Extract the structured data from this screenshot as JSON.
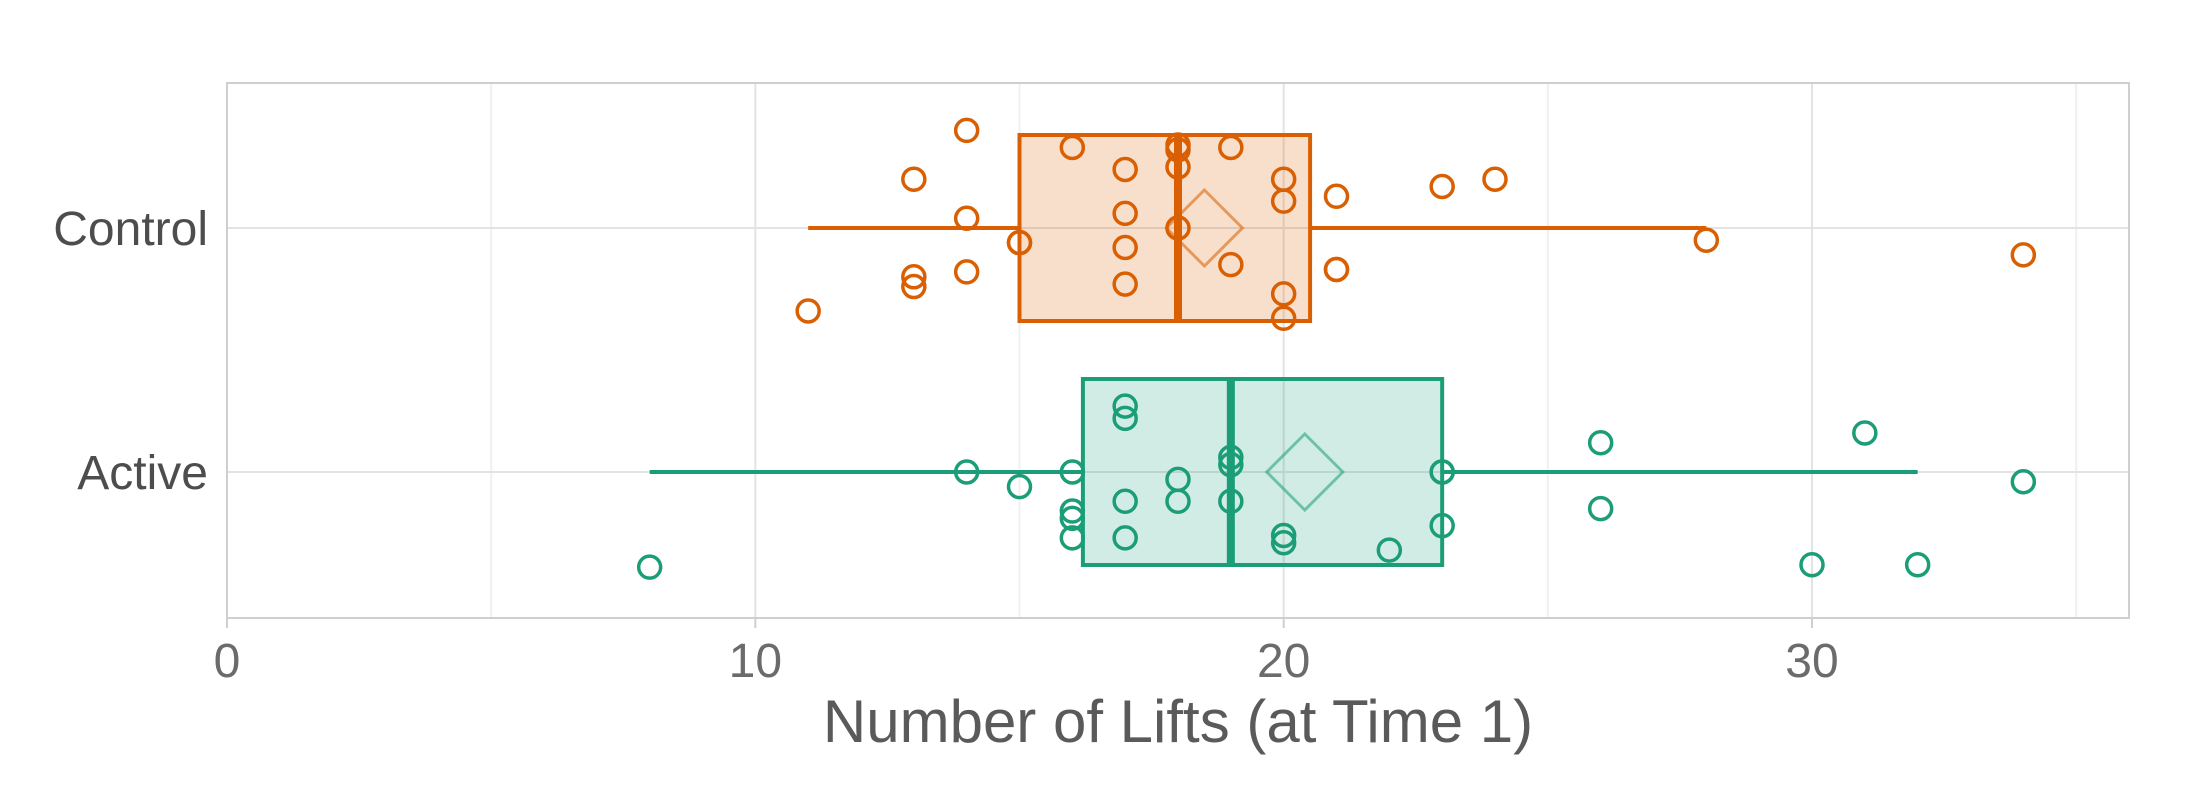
{
  "chart_data": {
    "type": "boxplot",
    "xlabel": "Number of Lifts (at Time 1)",
    "xlim": [
      0,
      36
    ],
    "x_ticks": [
      0,
      10,
      20,
      30
    ],
    "x_tick_labels": [
      "0",
      "10",
      "20",
      "30"
    ],
    "grid": true,
    "categories": [
      "Control",
      "Active"
    ],
    "groups": [
      {
        "name": "Control",
        "color": "#D95F02",
        "box": {
          "whisker_low": 11,
          "q1": 15,
          "median": 18,
          "q3": 20.5,
          "whisker_high": 28,
          "mean": 18.5
        },
        "points": [
          {
            "x": 14,
            "jitter": 0.4
          },
          {
            "x": 16,
            "jitter": 0.33
          },
          {
            "x": 18,
            "jitter": 0.34
          },
          {
            "x": 18,
            "jitter": 0.32
          },
          {
            "x": 19,
            "jitter": 0.33
          },
          {
            "x": 17,
            "jitter": 0.24
          },
          {
            "x": 13,
            "jitter": 0.2
          },
          {
            "x": 18,
            "jitter": 0.25
          },
          {
            "x": 20,
            "jitter": 0.2
          },
          {
            "x": 24,
            "jitter": 0.2
          },
          {
            "x": 23,
            "jitter": 0.17
          },
          {
            "x": 21,
            "jitter": 0.13
          },
          {
            "x": 20,
            "jitter": 0.11
          },
          {
            "x": 17,
            "jitter": 0.06
          },
          {
            "x": 14,
            "jitter": 0.04
          },
          {
            "x": 18,
            "jitter": 0.0
          },
          {
            "x": 15,
            "jitter": -0.06
          },
          {
            "x": 15,
            "jitter": -0.06
          },
          {
            "x": 17,
            "jitter": -0.08
          },
          {
            "x": 28,
            "jitter": -0.05
          },
          {
            "x": 34,
            "jitter": -0.11
          },
          {
            "x": 19,
            "jitter": -0.15
          },
          {
            "x": 14,
            "jitter": -0.18
          },
          {
            "x": 21,
            "jitter": -0.17
          },
          {
            "x": 21,
            "jitter": -0.17
          },
          {
            "x": 13,
            "jitter": -0.2
          },
          {
            "x": 13,
            "jitter": -0.24
          },
          {
            "x": 17,
            "jitter": -0.23
          },
          {
            "x": 20,
            "jitter": -0.27
          },
          {
            "x": 11,
            "jitter": -0.34
          },
          {
            "x": 20,
            "jitter": -0.37
          }
        ]
      },
      {
        "name": "Active",
        "color": "#1B9E77",
        "box": {
          "whisker_low": 8,
          "q1": 16.2,
          "median": 19,
          "q3": 23,
          "whisker_high": 32,
          "mean": 20.4
        },
        "points": [
          {
            "x": 17,
            "jitter": 0.27
          },
          {
            "x": 17,
            "jitter": 0.22
          },
          {
            "x": 31,
            "jitter": 0.16
          },
          {
            "x": 26,
            "jitter": 0.12
          },
          {
            "x": 19,
            "jitter": 0.06
          },
          {
            "x": 19,
            "jitter": 0.03
          },
          {
            "x": 14,
            "jitter": 0.0
          },
          {
            "x": 16,
            "jitter": 0.0
          },
          {
            "x": 23,
            "jitter": 0.0
          },
          {
            "x": 23,
            "jitter": 0.0
          },
          {
            "x": 18,
            "jitter": -0.03
          },
          {
            "x": 15,
            "jitter": -0.06
          },
          {
            "x": 34,
            "jitter": -0.04
          },
          {
            "x": 17,
            "jitter": -0.12
          },
          {
            "x": 18,
            "jitter": -0.12
          },
          {
            "x": 19,
            "jitter": -0.12
          },
          {
            "x": 26,
            "jitter": -0.15
          },
          {
            "x": 16,
            "jitter": -0.16
          },
          {
            "x": 16,
            "jitter": -0.19
          },
          {
            "x": 16,
            "jitter": -0.27
          },
          {
            "x": 17,
            "jitter": -0.27
          },
          {
            "x": 20,
            "jitter": -0.26
          },
          {
            "x": 20,
            "jitter": -0.29
          },
          {
            "x": 23,
            "jitter": -0.22
          },
          {
            "x": 22,
            "jitter": -0.32
          },
          {
            "x": 8,
            "jitter": -0.39
          },
          {
            "x": 30,
            "jitter": -0.38
          },
          {
            "x": 32,
            "jitter": -0.38
          }
        ]
      }
    ]
  }
}
